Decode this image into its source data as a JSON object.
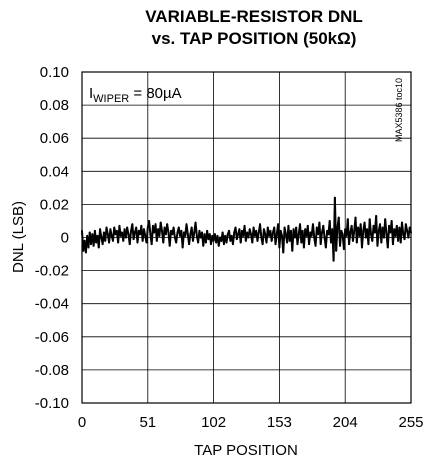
{
  "chart_data": {
    "type": "line",
    "title": [
      "VARIABLE-RESISTOR DNL",
      "vs. TAP POSITION (50kΩ)"
    ],
    "xlabel": "TAP POSITION",
    "ylabel": "DNL (LSB)",
    "xlim": [
      0,
      255
    ],
    "ylim": [
      -0.1,
      0.1
    ],
    "xticks": [
      0,
      51,
      102,
      153,
      204,
      255
    ],
    "xtick_labels": [
      "0",
      "51",
      "102",
      "153",
      "204",
      "255"
    ],
    "yticks": [
      0.1,
      0.08,
      0.06,
      0.04,
      0.02,
      0,
      -0.02,
      -0.04,
      -0.06,
      -0.08,
      -0.1
    ],
    "ytick_labels": [
      "0.10",
      "0.08",
      "0.06",
      "0.04",
      "0.02",
      "0",
      "-0.02",
      "-0.04",
      "-0.06",
      "-0.08",
      "-0.10"
    ],
    "grid": true,
    "annotation": {
      "main": "I",
      "sub": "WIPER",
      "rest": " = 80µA"
    },
    "watermark": "MAX5386 toc10",
    "series": [
      {
        "color": "#000000",
        "x": [
          0,
          1,
          2,
          3,
          4,
          5,
          6,
          7,
          8,
          9,
          10,
          11,
          12,
          13,
          14,
          15,
          16,
          17,
          18,
          19,
          20,
          21,
          22,
          23,
          24,
          25,
          26,
          27,
          28,
          29,
          30,
          31,
          32,
          33,
          34,
          35,
          36,
          37,
          38,
          39,
          40,
          41,
          42,
          43,
          44,
          45,
          46,
          47,
          48,
          49,
          50,
          51,
          52,
          53,
          54,
          55,
          56,
          57,
          58,
          59,
          60,
          61,
          62,
          63,
          64,
          65,
          66,
          67,
          68,
          69,
          70,
          71,
          72,
          73,
          74,
          75,
          76,
          77,
          78,
          79,
          80,
          81,
          82,
          83,
          84,
          85,
          86,
          87,
          88,
          89,
          90,
          91,
          92,
          93,
          94,
          95,
          96,
          97,
          98,
          99,
          100,
          101,
          102,
          103,
          104,
          105,
          106,
          107,
          108,
          109,
          110,
          111,
          112,
          113,
          114,
          115,
          116,
          117,
          118,
          119,
          120,
          121,
          122,
          123,
          124,
          125,
          126,
          127,
          128,
          129,
          130,
          131,
          132,
          133,
          134,
          135,
          136,
          137,
          138,
          139,
          140,
          141,
          142,
          143,
          144,
          145,
          146,
          147,
          148,
          149,
          150,
          151,
          152,
          153,
          154,
          155,
          156,
          157,
          158,
          159,
          160,
          161,
          162,
          163,
          164,
          165,
          166,
          167,
          168,
          169,
          170,
          171,
          172,
          173,
          174,
          175,
          176,
          177,
          178,
          179,
          180,
          181,
          182,
          183,
          184,
          185,
          186,
          187,
          188,
          189,
          190,
          191,
          192,
          193,
          194,
          195,
          196,
          197,
          198,
          199,
          200,
          201,
          202,
          203,
          204,
          205,
          206,
          207,
          208,
          209,
          210,
          211,
          212,
          213,
          214,
          215,
          216,
          217,
          218,
          219,
          220,
          221,
          222,
          223,
          224,
          225,
          226,
          227,
          228,
          229,
          230,
          231,
          232,
          233,
          234,
          235,
          236,
          237,
          238,
          239,
          240,
          241,
          242,
          243,
          244,
          245,
          246,
          247,
          248,
          249,
          250,
          251,
          252,
          253,
          254,
          255
        ],
        "y": [
          0.004,
          -0.008,
          -0.002,
          -0.009,
          0.001,
          -0.006,
          0.003,
          -0.004,
          0.002,
          -0.005,
          0.004,
          -0.003,
          0.001,
          -0.006,
          0.005,
          0.0,
          -0.004,
          0.003,
          -0.002,
          0.006,
          0.002,
          -0.003,
          0.005,
          0.001,
          -0.002,
          0.006,
          0.002,
          0.004,
          -0.003,
          0.007,
          0.001,
          0.003,
          -0.002,
          0.005,
          0.0,
          0.006,
          0.002,
          -0.004,
          0.004,
          0.008,
          -0.001,
          0.003,
          0.006,
          -0.003,
          0.004,
          0.002,
          0.007,
          -0.002,
          0.005,
          0.001,
          -0.003,
          0.006,
          0.01,
          0.002,
          -0.004,
          0.007,
          0.003,
          0.008,
          -0.002,
          0.005,
          0.001,
          0.009,
          0.004,
          -0.003,
          0.006,
          0.002,
          0.008,
          0.003,
          -0.005,
          0.004,
          0.002,
          0.006,
          0.0,
          -0.003,
          0.003,
          0.006,
          0.001,
          0.004,
          -0.006,
          0.003,
          0.001,
          0.008,
          0.002,
          -0.004,
          0.002,
          0.006,
          -0.002,
          0.003,
          0.009,
          0.001,
          -0.003,
          0.004,
          0.0,
          0.003,
          -0.005,
          0.002,
          -0.003,
          0.004,
          -0.001,
          0.002,
          -0.004,
          0.001,
          -0.002,
          0.002,
          -0.003,
          0.001,
          -0.005,
          0.0,
          -0.002,
          0.003,
          -0.004,
          0.001,
          -0.003,
          0.002,
          0.004,
          -0.002,
          0.001,
          -0.004,
          0.003,
          0.006,
          -0.001,
          0.002,
          0.005,
          -0.003,
          0.004,
          0.001,
          0.007,
          -0.002,
          0.003,
          0.0,
          0.005,
          0.002,
          -0.003,
          0.006,
          0.001,
          0.004,
          -0.002,
          0.003,
          0.008,
          0.0,
          -0.004,
          0.005,
          0.002,
          -0.003,
          0.006,
          0.001,
          0.004,
          -0.002,
          0.003,
          0.006,
          -0.004,
          0.002,
          0.008,
          -0.006,
          0.004,
          0.001,
          -0.009,
          0.006,
          0.002,
          -0.003,
          0.007,
          -0.002,
          0.004,
          -0.008,
          0.005,
          0.0,
          0.006,
          -0.004,
          0.002,
          0.008,
          -0.003,
          0.004,
          -0.006,
          0.005,
          0.001,
          0.007,
          -0.004,
          0.003,
          0.001,
          0.008,
          0.0,
          -0.005,
          0.006,
          0.002,
          0.009,
          -0.004,
          0.003,
          0.007,
          0.0,
          -0.006,
          0.004,
          0.002,
          0.01,
          -0.003,
          0.005,
          -0.014,
          0.024,
          -0.008,
          0.006,
          0.012,
          -0.005,
          0.004,
          0.002,
          -0.007,
          0.005,
          0.001,
          0.011,
          -0.004,
          0.003,
          0.007,
          -0.002,
          0.004,
          0.012,
          -0.003,
          0.006,
          0.001,
          0.008,
          -0.006,
          0.004,
          0.009,
          0.0,
          0.005,
          -0.004,
          0.011,
          0.002,
          -0.002,
          0.007,
          0.003,
          0.013,
          -0.005,
          0.004,
          0.008,
          -0.003,
          0.006,
          0.0,
          0.011,
          0.002,
          -0.006,
          0.007,
          0.003,
          0.01,
          -0.004,
          0.005,
          0.001,
          0.007,
          -0.002,
          0.006,
          -0.003,
          0.009,
          0.002,
          -0.001,
          0.008,
          0.004,
          0.0,
          0.006,
          0.003
        ]
      }
    ]
  }
}
